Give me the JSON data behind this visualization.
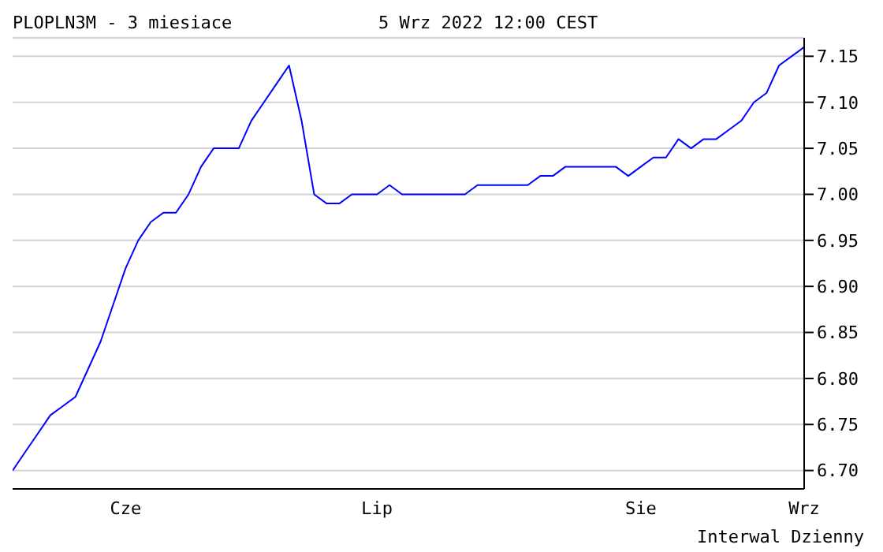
{
  "chart_data": {
    "type": "line",
    "title": "PLOPLN3M - 3 miesiace",
    "subtitle": "5 Wrz 2022 12:00 CEST",
    "annotations": [
      "Interwal Dzienny"
    ],
    "categories": [
      null,
      null,
      null,
      null,
      null,
      null,
      null,
      null,
      null,
      "Cze",
      null,
      null,
      null,
      null,
      null,
      null,
      null,
      null,
      null,
      null,
      null,
      null,
      null,
      null,
      null,
      null,
      null,
      null,
      null,
      "Lip",
      null,
      null,
      null,
      null,
      null,
      null,
      null,
      null,
      null,
      null,
      null,
      null,
      null,
      null,
      null,
      null,
      null,
      null,
      null,
      null,
      "Sie",
      null,
      null,
      null,
      null,
      null,
      null,
      null,
      null,
      null,
      null,
      null,
      null,
      "Wrz"
    ],
    "series": [
      {
        "color": "#0000ff",
        "values": [
          6.7,
          6.72,
          6.74,
          6.76,
          6.77,
          6.78,
          6.81,
          6.84,
          6.88,
          6.92,
          6.95,
          6.97,
          6.98,
          6.98,
          7.0,
          7.03,
          7.05,
          7.05,
          7.05,
          7.08,
          7.1,
          7.12,
          7.14,
          7.08,
          7.0,
          6.99,
          6.99,
          7.0,
          7.0,
          7.0,
          7.01,
          7.0,
          7.0,
          7.0,
          7.0,
          7.0,
          7.0,
          7.01,
          7.01,
          7.01,
          7.01,
          7.01,
          7.02,
          7.02,
          7.03,
          7.03,
          7.03,
          7.03,
          7.03,
          7.02,
          7.03,
          7.04,
          7.04,
          7.06,
          7.05,
          7.06,
          7.06,
          7.07,
          7.08,
          7.1,
          7.11,
          7.14,
          7.15,
          7.16
        ]
      }
    ],
    "ylim": [
      6.68,
      7.17
    ],
    "yticks": [
      {
        "value": 6.7,
        "label": "6.70"
      },
      6.75,
      {
        "value": 6.8,
        "label": "6.80"
      },
      6.85,
      {
        "value": 6.9,
        "label": "6.90"
      },
      6.95,
      {
        "value": 7,
        "label": "7.00"
      },
      7.05,
      {
        "value": 7.1,
        "label": "7.10"
      },
      7.15
    ],
    "grid": "y",
    "marker": "none",
    "line_style": "solid"
  }
}
